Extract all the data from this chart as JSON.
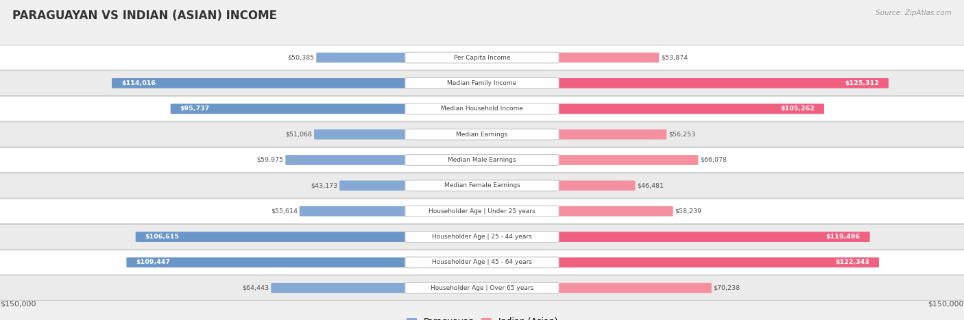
{
  "title": "PARAGUAYAN VS INDIAN (ASIAN) INCOME",
  "source": "Source: ZipAtlas.com",
  "categories": [
    "Per Capita Income",
    "Median Family Income",
    "Median Household Income",
    "Median Earnings",
    "Median Male Earnings",
    "Median Female Earnings",
    "Householder Age | Under 25 years",
    "Householder Age | 25 - 44 years",
    "Householder Age | 45 - 64 years",
    "Householder Age | Over 65 years"
  ],
  "paraguayan_values": [
    50385,
    114016,
    95737,
    51068,
    59975,
    43173,
    55614,
    106615,
    109447,
    64443
  ],
  "indian_values": [
    53874,
    125312,
    105262,
    56253,
    66078,
    46481,
    58239,
    119496,
    122343,
    70238
  ],
  "paraguayan_labels": [
    "$50,385",
    "$114,016",
    "$95,737",
    "$51,068",
    "$59,975",
    "$43,173",
    "$55,614",
    "$106,615",
    "$109,447",
    "$64,443"
  ],
  "indian_labels": [
    "$53,874",
    "$125,312",
    "$105,262",
    "$56,253",
    "$66,078",
    "$46,481",
    "$58,239",
    "$119,496",
    "$122,343",
    "$70,238"
  ],
  "paraguayan_color": "#85a9d4",
  "indian_color": "#f490a0",
  "paraguayan_color_strong": "#6b97c8",
  "indian_color_strong": "#f06080",
  "paraguayan_label_inside": [
    false,
    true,
    true,
    false,
    false,
    false,
    false,
    true,
    true,
    false
  ],
  "indian_label_inside": [
    false,
    true,
    true,
    false,
    false,
    false,
    false,
    true,
    true,
    false
  ],
  "max_value": 150000,
  "fig_bg": "#f0f0f0",
  "row_bg": "#ffffff",
  "row_bg_alt": "#ebebeb",
  "legend_paraguayan": "Paraguayan",
  "legend_indian": "Indian (Asian)"
}
